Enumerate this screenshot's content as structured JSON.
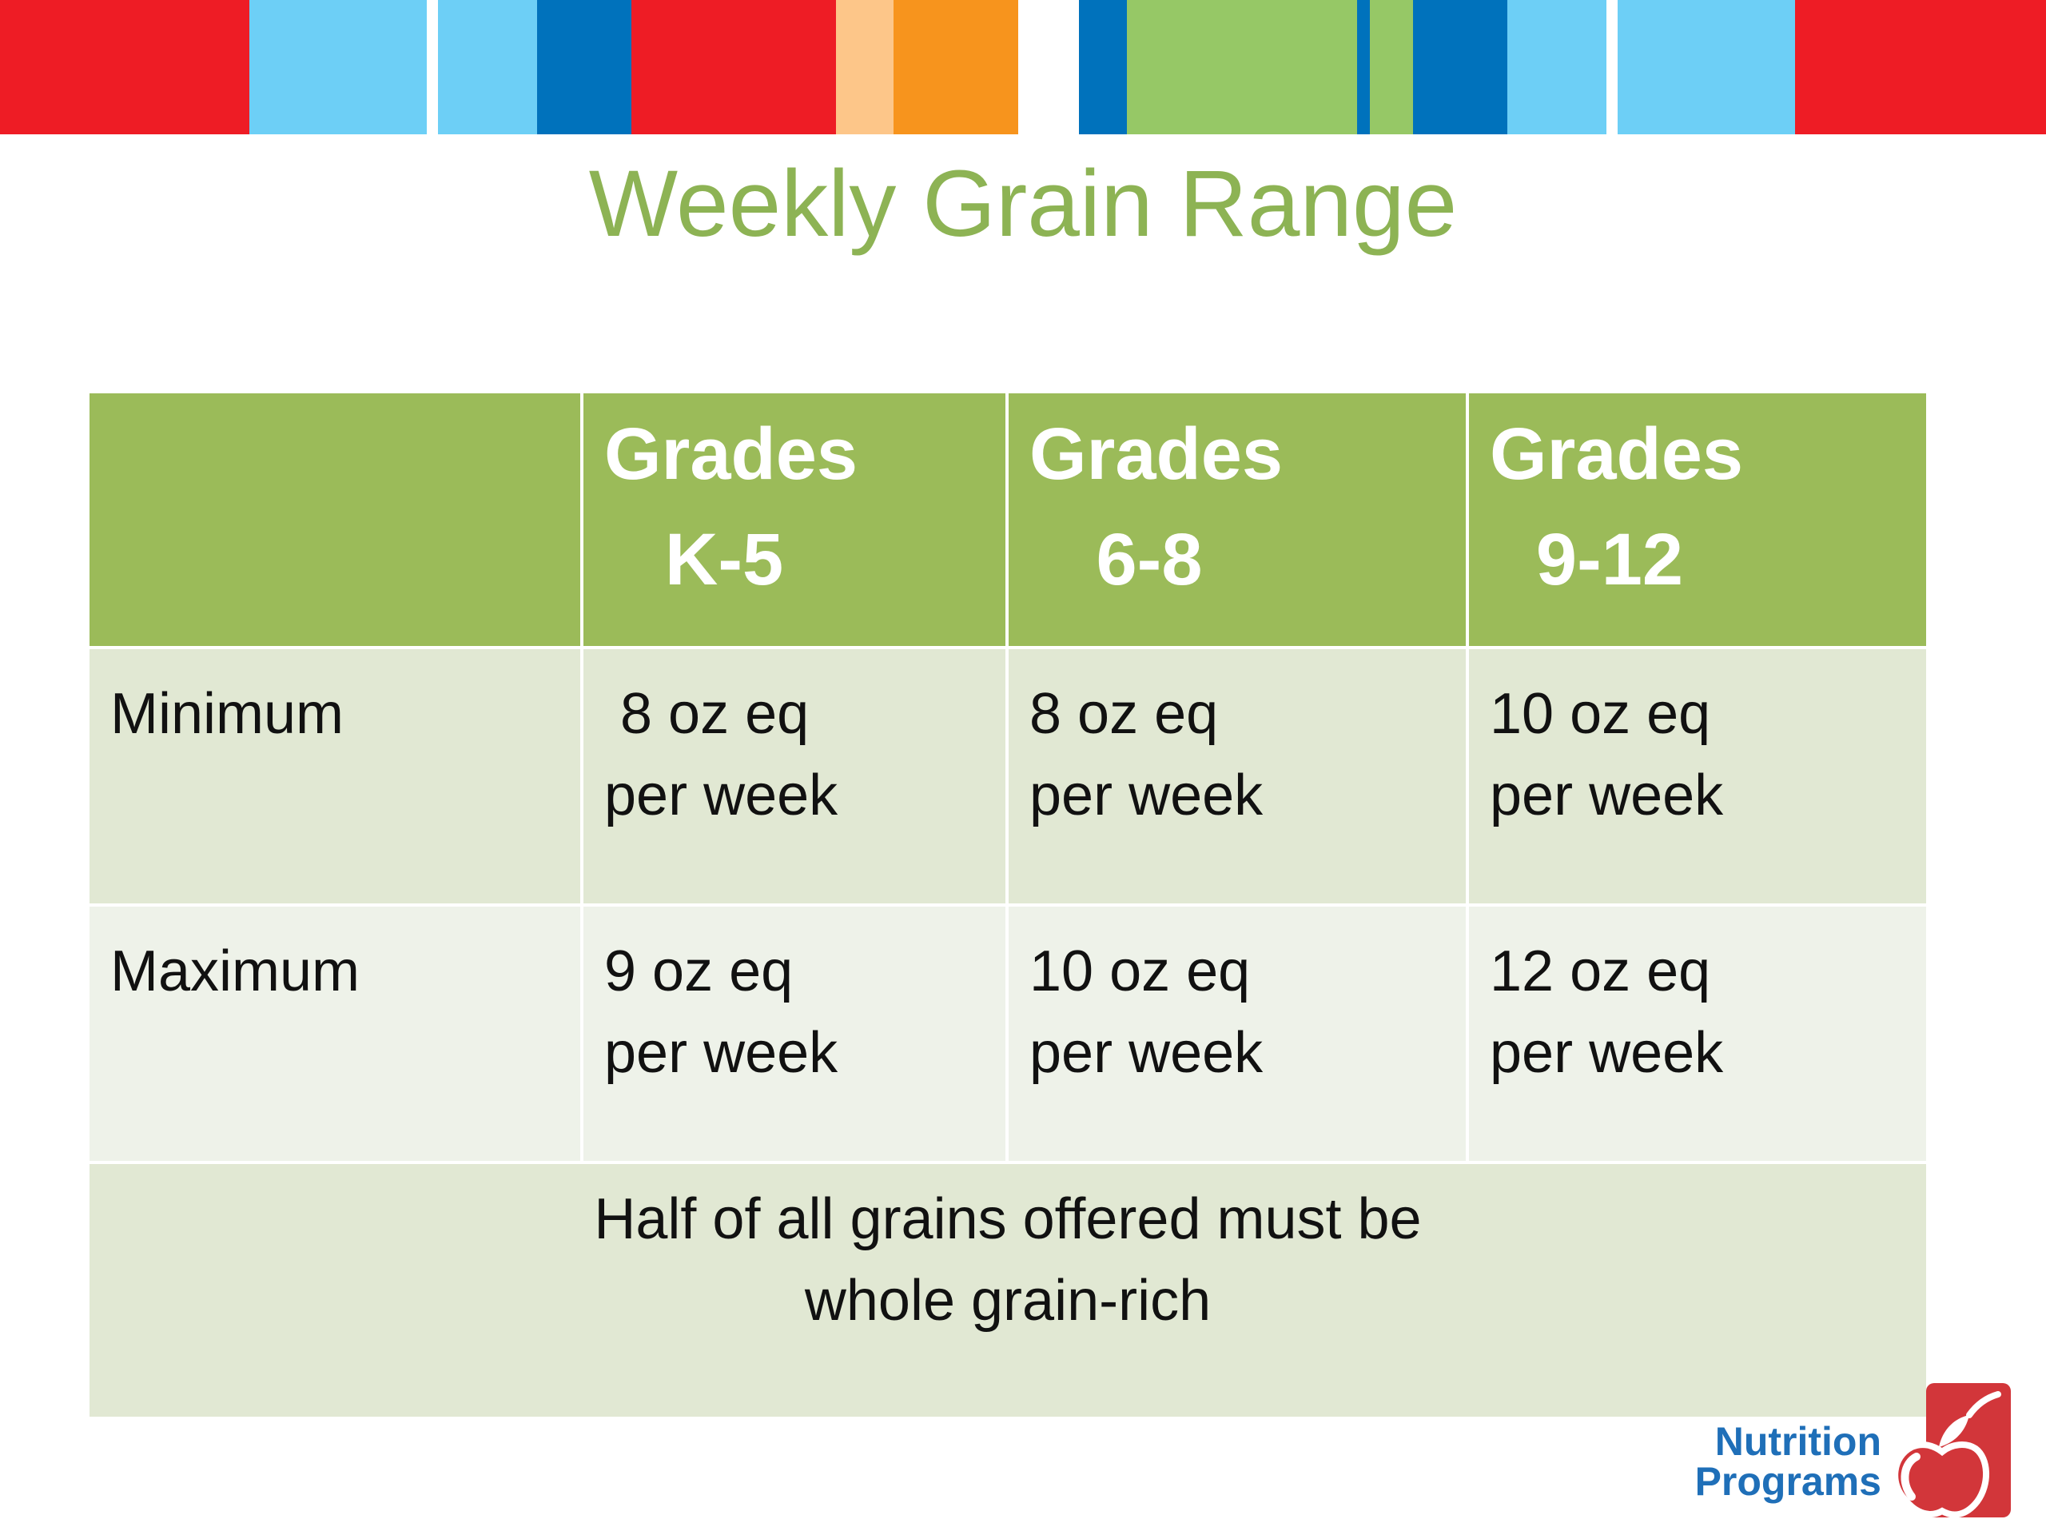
{
  "slide": {
    "title": "Weekly Grain Range",
    "stripe_colors": {
      "red": "#ee1c25",
      "light_blue": "#6dcff6",
      "blue": "#0072bc",
      "peach": "#fdc689",
      "orange": "#f7941d",
      "green": "#96c866",
      "white": "#ffffff"
    },
    "title_color": "#8db354"
  },
  "table": {
    "header": [
      {
        "line1": "",
        "line2": ""
      },
      {
        "line1": "Grades",
        "line2": "K-5"
      },
      {
        "line1": "Grades",
        "line2": "6-8"
      },
      {
        "line1": "Grades",
        "line2": "9-12"
      }
    ],
    "rows": [
      {
        "label": "Minimum",
        "cells": [
          {
            "line1": " 8 oz eq",
            "line2": "per week"
          },
          {
            "line1": "8 oz eq",
            "line2": "per week"
          },
          {
            "line1": "10 oz eq",
            "line2": "per week"
          }
        ]
      },
      {
        "label": "Maximum",
        "cells": [
          {
            "line1": "9 oz eq",
            "line2": "per week"
          },
          {
            "line1": "10 oz eq",
            "line2": "per week"
          },
          {
            "line1": "12 oz eq",
            "line2": "per week"
          }
        ]
      }
    ],
    "note": {
      "line1": "Half of all grains offered must be",
      "line2": "whole grain-rich"
    },
    "colors": {
      "header_bg": "#9bbb59",
      "row_dark": "#e1e8d3",
      "row_light": "#eef2e9"
    }
  },
  "logo": {
    "line1": "Nutrition",
    "line2": "Programs",
    "icon": "apple-icon",
    "colors": {
      "text": "#1f6fb8",
      "apple": "#d2363a"
    }
  }
}
